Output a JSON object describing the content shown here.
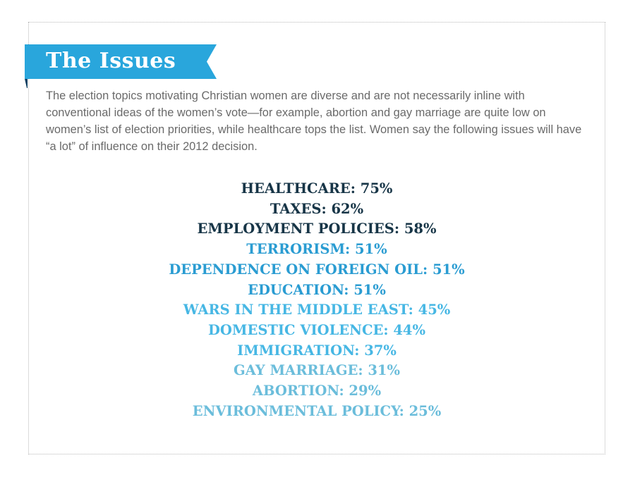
{
  "section": {
    "title": "The Issues"
  },
  "intro": {
    "text": "The election topics motivating Christian women are diverse and are not necessarily inline with conventional ideas of the women’s vote—for example, abortion and gay marriage are quite low on women’s list of election priorities, while healthcare tops the list. Women say the following issues will have “a lot” of influence on their 2012 decision."
  },
  "colors": {
    "banner": "#29a6dc",
    "banner_fold": "#0d3f61",
    "dark_navy": "#173547",
    "medium_blue": "#2a9cd2",
    "light_blue": "#47b7e4",
    "pale_blue": "#6bbddb"
  },
  "issues": [
    {
      "label": "HEALTHCARE: 75%",
      "issue": "HEALTHCARE",
      "percent": 75,
      "color": "#173547"
    },
    {
      "label": "TAXES: 62%",
      "issue": "TAXES",
      "percent": 62,
      "color": "#173547"
    },
    {
      "label": "EMPLOYMENT POLICIES: 58%",
      "issue": "EMPLOYMENT POLICIES",
      "percent": 58,
      "color": "#173547"
    },
    {
      "label": "TERRORISM: 51%",
      "issue": "TERRORISM",
      "percent": 51,
      "color": "#2a9cd2"
    },
    {
      "label": "DEPENDENCE ON FOREIGN OIL: 51%",
      "issue": "DEPENDENCE ON FOREIGN OIL",
      "percent": 51,
      "color": "#2a9cd2"
    },
    {
      "label": "EDUCATION: 51%",
      "issue": "EDUCATION",
      "percent": 51,
      "color": "#2a9cd2"
    },
    {
      "label": "WARS IN THE MIDDLE EAST: 45%",
      "issue": "WARS IN THE MIDDLE EAST",
      "percent": 45,
      "color": "#47b7e4"
    },
    {
      "label": "DOMESTIC VIOLENCE: 44%",
      "issue": "DOMESTIC VIOLENCE",
      "percent": 44,
      "color": "#47b7e4"
    },
    {
      "label": "IMMIGRATION: 37%",
      "issue": "IMMIGRATION",
      "percent": 37,
      "color": "#47b7e4"
    },
    {
      "label": "GAY MARRIAGE: 31%",
      "issue": "GAY MARRIAGE",
      "percent": 31,
      "color": "#6bbddb"
    },
    {
      "label": "ABORTION: 29%",
      "issue": "ABORTION",
      "percent": 29,
      "color": "#6bbddb"
    },
    {
      "label": "ENVIRONMENTAL POLICY: 25%",
      "issue": "ENVIRONMENTAL POLICY",
      "percent": 25,
      "color": "#6bbddb"
    }
  ]
}
